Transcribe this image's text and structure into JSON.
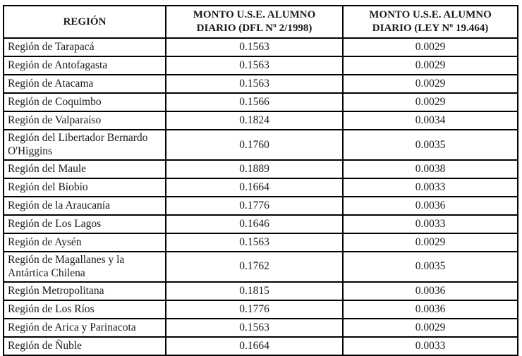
{
  "table": {
    "headers": [
      "REGIÓN",
      "MONTO U.S.E. ALUMNO DIARIO (DFL Nº 2/1998)",
      "MONTO U.S.E. ALUMNO DIARIO (LEY Nº 19.464)"
    ],
    "rows": [
      {
        "region": "Región de Tarapacá",
        "dfl": "0.1563",
        "ley": "0.0029"
      },
      {
        "region": "Región de Antofagasta",
        "dfl": "0.1563",
        "ley": "0.0029"
      },
      {
        "region": "Región de Atacama",
        "dfl": "0.1563",
        "ley": "0.0029"
      },
      {
        "region": "Región de Coquimbo",
        "dfl": "0.1566",
        "ley": "0.0029"
      },
      {
        "region": "Región de Valparaíso",
        "dfl": "0.1824",
        "ley": "0.0034"
      },
      {
        "region": "Región del Libertador Bernardo O'Higgins",
        "dfl": "0.1760",
        "ley": "0.0035"
      },
      {
        "region": "Región del Maule",
        "dfl": "0.1889",
        "ley": "0.0038"
      },
      {
        "region": "Región del Biobío",
        "dfl": "0.1664",
        "ley": "0.0033"
      },
      {
        "region": "Región de la Araucanía",
        "dfl": "0.1776",
        "ley": "0.0036"
      },
      {
        "region": "Región de Los Lagos",
        "dfl": "0.1646",
        "ley": "0.0033"
      },
      {
        "region": "Región de Aysén",
        "dfl": "0.1563",
        "ley": "0.0029"
      },
      {
        "region": "Región de Magallanes y la Antártica Chilena",
        "dfl": "0.1762",
        "ley": "0.0035"
      },
      {
        "region": "Región Metropolitana",
        "dfl": "0.1815",
        "ley": "0.0036"
      },
      {
        "region": "Región de Los Ríos",
        "dfl": "0.1776",
        "ley": "0.0036"
      },
      {
        "region": "Región de Arica y Parinacota",
        "dfl": "0.1563",
        "ley": "0.0029"
      },
      {
        "region": "Región de Ñuble",
        "dfl": "0.1664",
        "ley": "0.0033"
      }
    ],
    "colors": {
      "border": "#000000",
      "text": "#1a1a1a",
      "background": "#ffffff"
    }
  }
}
